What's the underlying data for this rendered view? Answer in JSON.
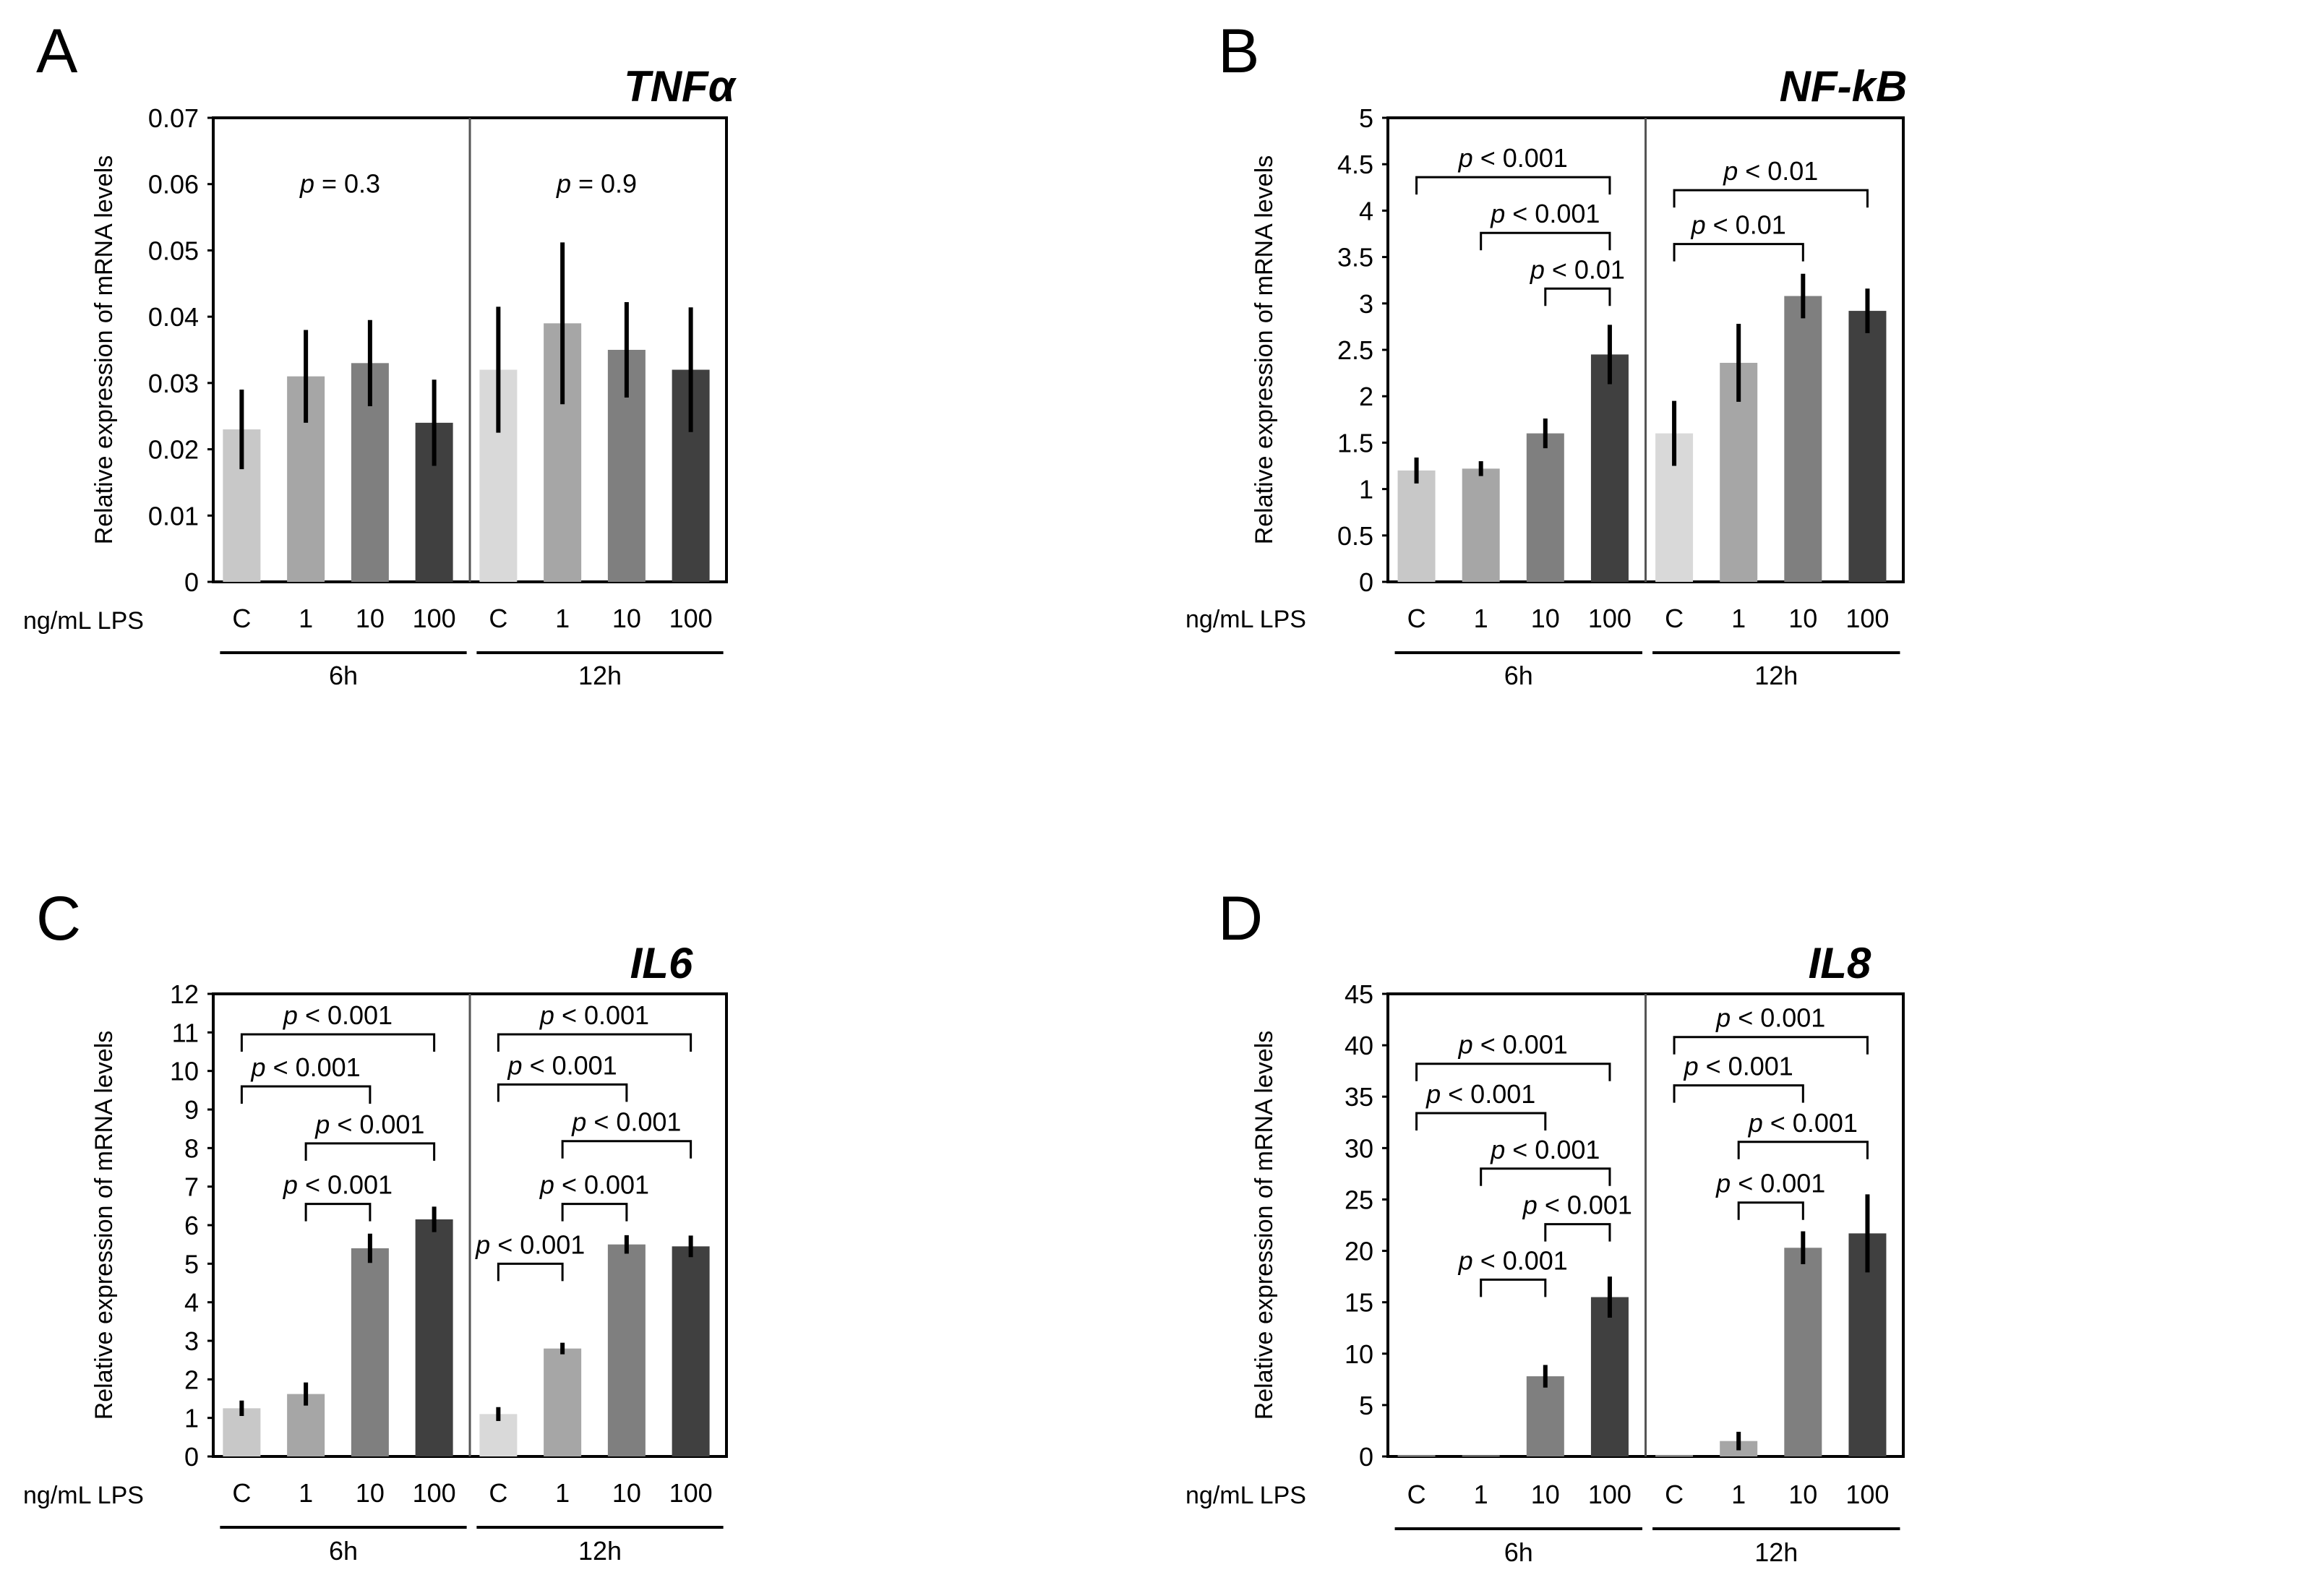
{
  "figure": {
    "x_axis_prefix": "ng/mL LPS",
    "y_axis_label": "Relative expression of mRNA levels",
    "group_labels": [
      "6h",
      "12h"
    ],
    "category_labels": [
      "C",
      "1",
      "10",
      "100"
    ],
    "bar_colors": [
      "#c8c8c8",
      "#a6a6a6",
      "#7f7f7f",
      "#404040"
    ],
    "bar_colors_12h_control": "#d9d9d9"
  },
  "chart_data": [
    {
      "panel": "A",
      "type": "bar",
      "title": "TNFα",
      "ylabel": "Relative expression of mRNA levels",
      "ylim": [
        0,
        0.07
      ],
      "yticks": [
        "0",
        "0.01",
        "0.02",
        "0.03",
        "0.04",
        "0.05",
        "0.06",
        "0.07"
      ],
      "ytick_values": [
        0,
        0.01,
        0.02,
        0.03,
        0.04,
        0.05,
        0.06,
        0.07
      ],
      "groups": [
        "6h",
        "12h"
      ],
      "categories": [
        "C",
        "1",
        "10",
        "100"
      ],
      "series": [
        {
          "group": "6h",
          "values": [
            0.023,
            0.031,
            0.033,
            0.024
          ],
          "errors": [
            0.006,
            0.007,
            0.0065,
            0.0065
          ]
        },
        {
          "group": "12h",
          "values": [
            0.032,
            0.039,
            0.035,
            0.032
          ],
          "errors": [
            0.0095,
            0.0122,
            0.0072,
            0.0094
          ]
        }
      ],
      "annotations": [
        {
          "group": "6h",
          "type": "text",
          "p_prefix": "p",
          "p_rest": " = 0.3",
          "y": 0.06
        },
        {
          "group": "12h",
          "type": "text",
          "p_prefix": "p",
          "p_rest": " = 0.9",
          "y": 0.06
        }
      ]
    },
    {
      "panel": "B",
      "type": "bar",
      "title": "NF-kB",
      "ylabel": "Relative expression of mRNA levels",
      "ylim": [
        0,
        5
      ],
      "yticks": [
        "0",
        "0.5",
        "1",
        "1.5",
        "2",
        "2.5",
        "3",
        "3.5",
        "4",
        "4.5",
        "5"
      ],
      "ytick_values": [
        0,
        0.5,
        1,
        1.5,
        2,
        2.5,
        3,
        3.5,
        4,
        4.5,
        5
      ],
      "groups": [
        "6h",
        "12h"
      ],
      "categories": [
        "C",
        "1",
        "10",
        "100"
      ],
      "series": [
        {
          "group": "6h",
          "values": [
            1.2,
            1.22,
            1.6,
            2.45
          ],
          "errors": [
            0.14,
            0.08,
            0.16,
            0.32
          ]
        },
        {
          "group": "12h",
          "values": [
            1.6,
            2.36,
            3.08,
            2.92
          ],
          "errors": [
            0.35,
            0.42,
            0.24,
            0.24
          ]
        }
      ],
      "annotations": [
        {
          "group": "6h",
          "type": "bracket",
          "from": 0,
          "to": 3,
          "y": 4.36,
          "p_prefix": "p",
          "p_rest": " < 0.001"
        },
        {
          "group": "6h",
          "type": "bracket",
          "from": 1,
          "to": 3,
          "y": 3.76,
          "p_prefix": "p",
          "p_rest": " < 0.001"
        },
        {
          "group": "6h",
          "type": "bracket",
          "from": 2,
          "to": 3,
          "y": 3.16,
          "p_prefix": "p",
          "p_rest": " < 0.01"
        },
        {
          "group": "12h",
          "type": "bracket",
          "from": 0,
          "to": 3,
          "y": 4.22,
          "p_prefix": "p",
          "p_rest": " < 0.01"
        },
        {
          "group": "12h",
          "type": "bracket",
          "from": 0,
          "to": 2,
          "y": 3.64,
          "p_prefix": "p",
          "p_rest": " < 0.01"
        }
      ]
    },
    {
      "panel": "C",
      "type": "bar",
      "title": "IL6",
      "ylabel": "Relative expression of mRNA levels",
      "ylim": [
        0,
        12
      ],
      "yticks": [
        "0",
        "1",
        "2",
        "3",
        "4",
        "5",
        "6",
        "7",
        "8",
        "9",
        "10",
        "11",
        "12"
      ],
      "ytick_values": [
        0,
        1,
        2,
        3,
        4,
        5,
        6,
        7,
        8,
        9,
        10,
        11,
        12
      ],
      "groups": [
        "6h",
        "12h"
      ],
      "categories": [
        "C",
        "1",
        "10",
        "100"
      ],
      "series": [
        {
          "group": "6h",
          "values": [
            1.25,
            1.62,
            5.4,
            6.15
          ],
          "errors": [
            0.2,
            0.3,
            0.38,
            0.33
          ]
        },
        {
          "group": "12h",
          "values": [
            1.1,
            2.8,
            5.5,
            5.45
          ],
          "errors": [
            0.18,
            0.15,
            0.24,
            0.28
          ]
        }
      ],
      "annotations": [
        {
          "group": "6h",
          "type": "bracket",
          "from": 0,
          "to": 3,
          "y": 10.95,
          "p_prefix": "p",
          "p_rest": " < 0.001"
        },
        {
          "group": "6h",
          "type": "bracket",
          "from": 0,
          "to": 2,
          "y": 9.6,
          "p_prefix": "p",
          "p_rest": " < 0.001"
        },
        {
          "group": "6h",
          "type": "bracket",
          "from": 1,
          "to": 3,
          "y": 8.12,
          "p_prefix": "p",
          "p_rest": " < 0.001"
        },
        {
          "group": "6h",
          "type": "bracket",
          "from": 1,
          "to": 2,
          "y": 6.55,
          "p_prefix": "p",
          "p_rest": " < 0.001"
        },
        {
          "group": "12h",
          "type": "bracket",
          "from": 0,
          "to": 3,
          "y": 10.95,
          "p_prefix": "p",
          "p_rest": " < 0.001"
        },
        {
          "group": "12h",
          "type": "bracket",
          "from": 0,
          "to": 2,
          "y": 9.65,
          "p_prefix": "p",
          "p_rest": " < 0.001"
        },
        {
          "group": "12h",
          "type": "bracket",
          "from": 1,
          "to": 3,
          "y": 8.18,
          "p_prefix": "p",
          "p_rest": " < 0.001"
        },
        {
          "group": "12h",
          "type": "bracket",
          "from": 1,
          "to": 2,
          "y": 6.55,
          "p_prefix": "p",
          "p_rest": " < 0.001"
        },
        {
          "group": "12h",
          "type": "bracket",
          "from": 0,
          "to": 1,
          "y": 5.0,
          "p_prefix": "p",
          "p_rest": " < 0.001"
        }
      ]
    },
    {
      "panel": "D",
      "type": "bar",
      "title": "IL8",
      "ylabel": "Relative expression of mRNA levels",
      "ylim": [
        0,
        45
      ],
      "yticks": [
        "0",
        "5",
        "10",
        "15",
        "20",
        "25",
        "30",
        "35",
        "40",
        "45"
      ],
      "ytick_values": [
        0,
        5,
        10,
        15,
        20,
        25,
        30,
        35,
        40,
        45
      ],
      "groups": [
        "6h",
        "12h"
      ],
      "categories": [
        "C",
        "1",
        "10",
        "100"
      ],
      "series": [
        {
          "group": "6h",
          "values": [
            0.1,
            0.1,
            7.8,
            15.5
          ],
          "errors": [
            0,
            0,
            1.1,
            2.0
          ]
        },
        {
          "group": "12h",
          "values": [
            0.1,
            1.5,
            20.3,
            21.7
          ],
          "errors": [
            0,
            0.9,
            1.6,
            3.8
          ]
        }
      ],
      "annotations": [
        {
          "group": "6h",
          "type": "bracket",
          "from": 0,
          "to": 3,
          "y": 38.2,
          "p_prefix": "p",
          "p_rest": " < 0.001"
        },
        {
          "group": "6h",
          "type": "bracket",
          "from": 0,
          "to": 2,
          "y": 33.4,
          "p_prefix": "p",
          "p_rest": " < 0.001"
        },
        {
          "group": "6h",
          "type": "bracket",
          "from": 1,
          "to": 3,
          "y": 28.0,
          "p_prefix": "p",
          "p_rest": " < 0.001"
        },
        {
          "group": "6h",
          "type": "bracket",
          "from": 2,
          "to": 3,
          "y": 22.6,
          "p_prefix": "p",
          "p_rest": " < 0.001"
        },
        {
          "group": "6h",
          "type": "bracket",
          "from": 1,
          "to": 2,
          "y": 17.2,
          "p_prefix": "p",
          "p_rest": " < 0.001"
        },
        {
          "group": "12h",
          "type": "bracket",
          "from": 0,
          "to": 3,
          "y": 40.8,
          "p_prefix": "p",
          "p_rest": " < 0.001"
        },
        {
          "group": "12h",
          "type": "bracket",
          "from": 0,
          "to": 2,
          "y": 36.1,
          "p_prefix": "p",
          "p_rest": " < 0.001"
        },
        {
          "group": "12h",
          "type": "bracket",
          "from": 1,
          "to": 3,
          "y": 30.6,
          "p_prefix": "p",
          "p_rest": " < 0.001"
        },
        {
          "group": "12h",
          "type": "bracket",
          "from": 1,
          "to": 2,
          "y": 24.7,
          "p_prefix": "p",
          "p_rest": " < 0.001"
        }
      ]
    }
  ]
}
